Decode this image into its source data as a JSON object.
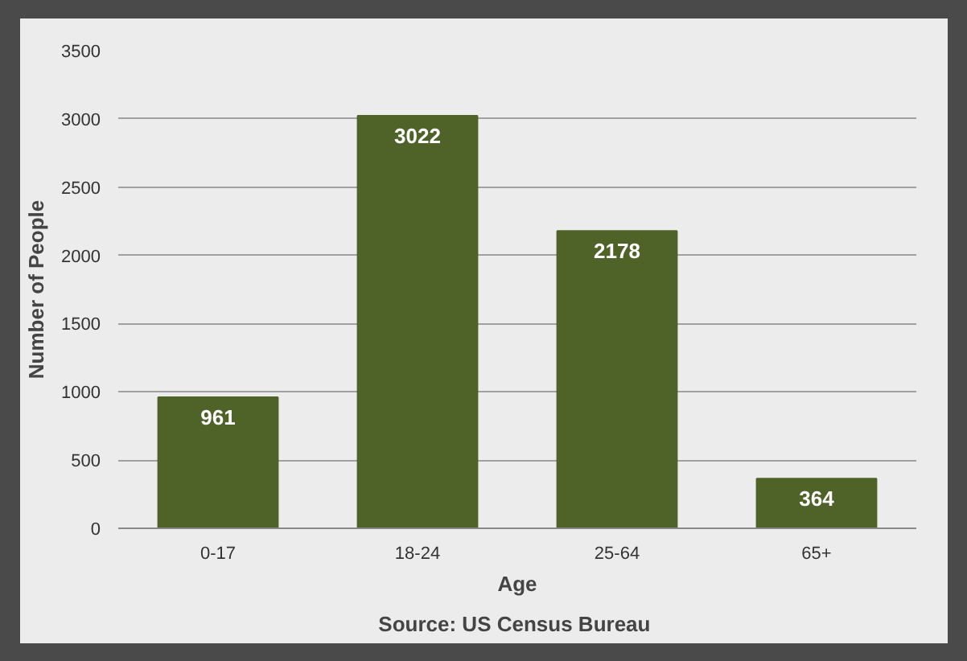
{
  "chart_data": {
    "type": "bar",
    "xlabel": "Age",
    "ylabel": "Number of People",
    "annotations": [
      "Source:  US Census Bureau"
    ],
    "categories": [
      "0-17",
      "18-24",
      "25-64",
      "65+"
    ],
    "values": [
      961,
      3022,
      2178,
      364
    ],
    "color": "#4f6228",
    "ylim": [
      0,
      3500
    ],
    "yticks": [
      0,
      500,
      1000,
      1500,
      2000,
      2500,
      3000,
      3500
    ],
    "grid": "y",
    "data_labels": true
  }
}
